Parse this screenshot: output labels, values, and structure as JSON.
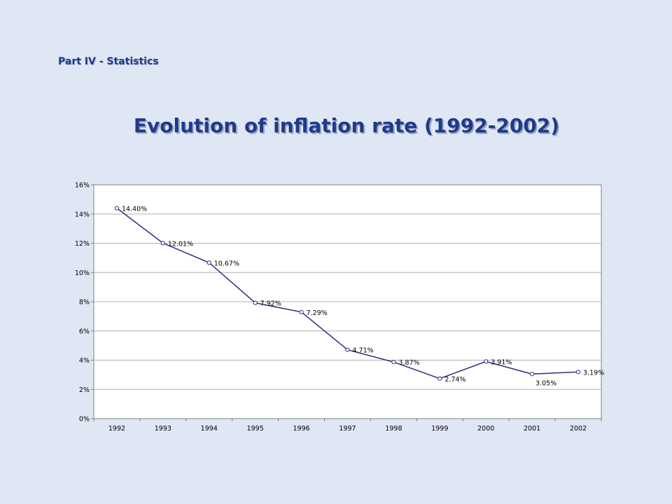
{
  "header": {
    "section_label": "Part IV - Statistics"
  },
  "slide": {
    "title": "Evolution of inflation rate (1992-2002)"
  },
  "colors": {
    "background": "#dfe6f4",
    "plot_area": "#ffffff",
    "line": "#2a3080",
    "gridline": "#b0b0b0",
    "title_text": "#1f3a8a"
  },
  "chart_data": {
    "type": "line",
    "title": "",
    "xlabel": "",
    "ylabel": "",
    "categories": [
      "1992",
      "1993",
      "1994",
      "1995",
      "1996",
      "1997",
      "1998",
      "1999",
      "2000",
      "2001",
      "2002"
    ],
    "series": [
      {
        "values": [
          14.4,
          12.01,
          10.67,
          7.92,
          7.29,
          4.71,
          3.87,
          2.74,
          3.91,
          3.05,
          3.19
        ],
        "data_labels": [
          "14.40%",
          "12.01%",
          "10.67%",
          "7.92%",
          "7.29%",
          "4.71%",
          "3.87%",
          "2.74%",
          "3.91%",
          "3.05%",
          "3.19%"
        ]
      }
    ],
    "ylim": [
      0,
      16
    ],
    "yticks": [
      0,
      2,
      4,
      6,
      8,
      10,
      12,
      14,
      16
    ],
    "ytick_labels": [
      "0%",
      "2%",
      "4%",
      "6%",
      "8%",
      "10%",
      "12%",
      "14%",
      "16%"
    ],
    "grid": true,
    "legend": "none"
  }
}
